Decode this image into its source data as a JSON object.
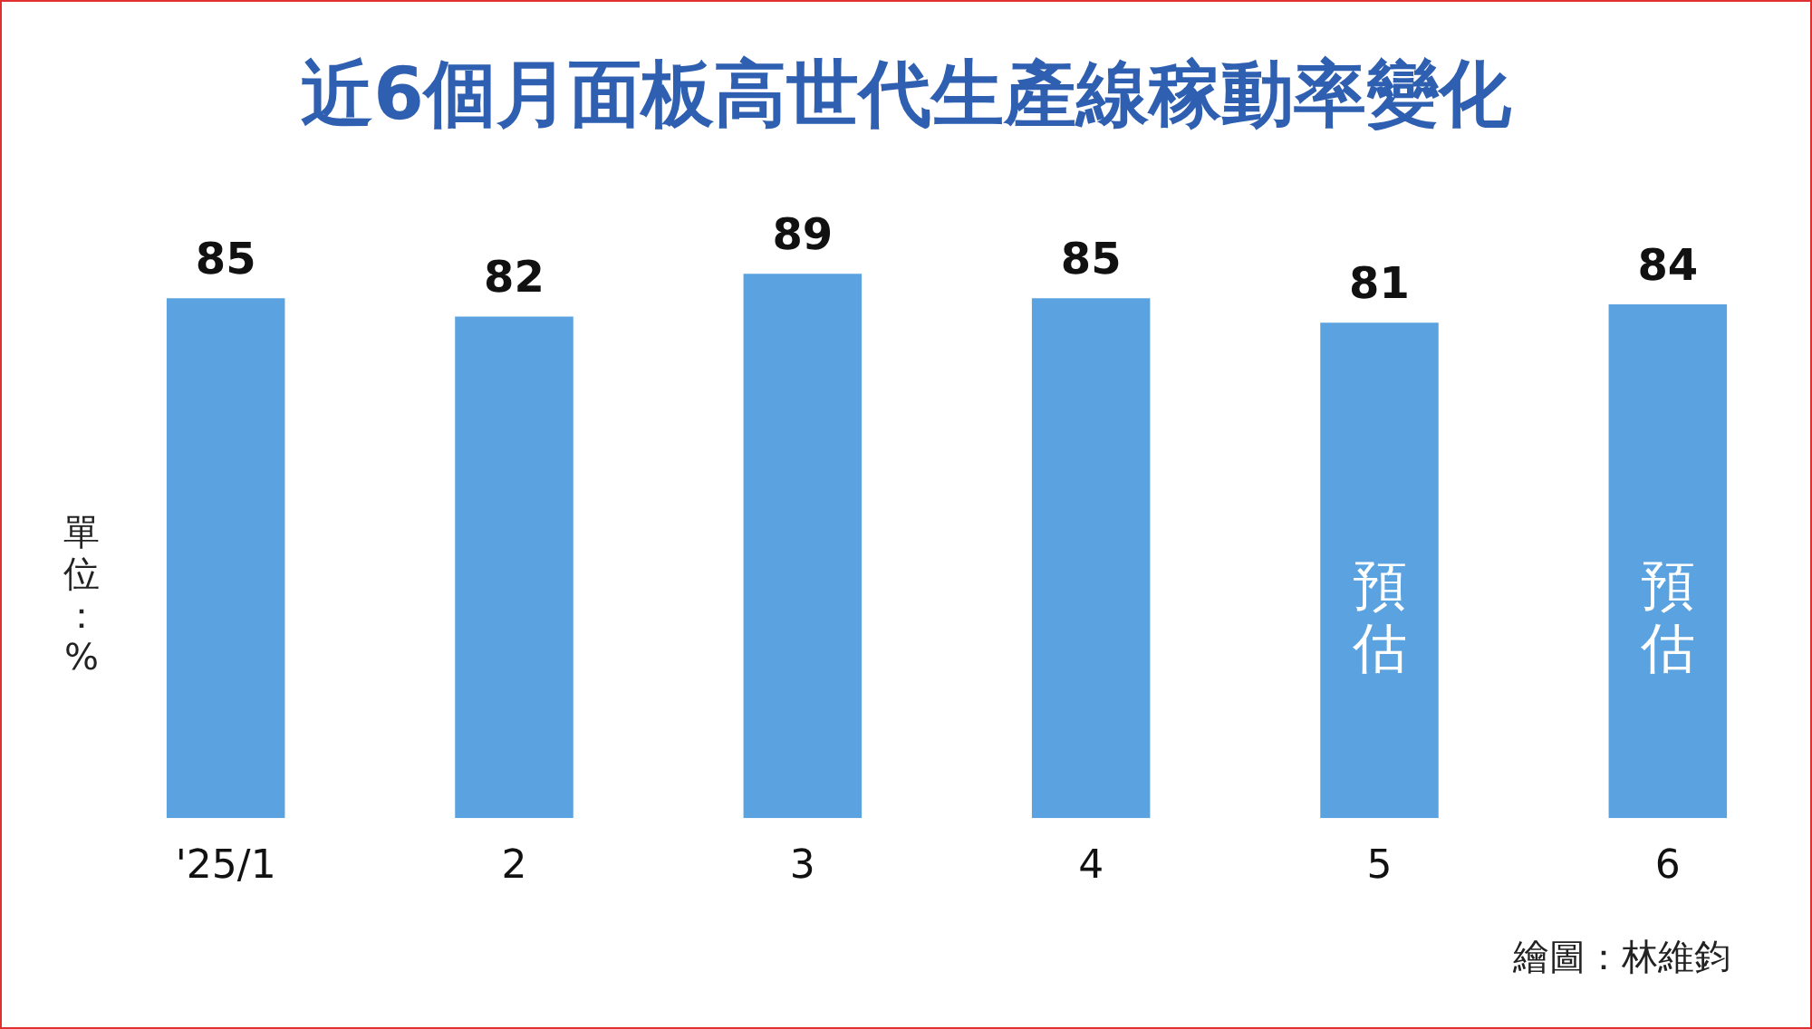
{
  "chart_data": {
    "type": "bar",
    "title": "近6個月面板高世代生產線稼動率變化",
    "ylabel": "單位：%",
    "categories": [
      "'25/1",
      "2",
      "3",
      "4",
      "5",
      "6"
    ],
    "values": [
      85,
      82,
      89,
      85,
      81,
      84
    ],
    "color": "#5ba3e0",
    "data_labels": true,
    "legend": false,
    "grid": false,
    "annotations": [
      "預估",
      "預估",
      "繪圖：林維鈞"
    ]
  }
}
